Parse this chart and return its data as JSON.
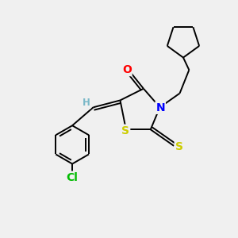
{
  "bg_color": "#f0f0f0",
  "bond_color": "#000000",
  "atom_colors": {
    "O": "#ff0000",
    "N": "#0000ff",
    "S_thioxo": "#cccc00",
    "S_ring": "#cccc00",
    "Cl": "#00bb00",
    "H": "#7ab8c8",
    "C": "#000000"
  },
  "figsize": [
    3.0,
    3.0
  ],
  "dpi": 100
}
